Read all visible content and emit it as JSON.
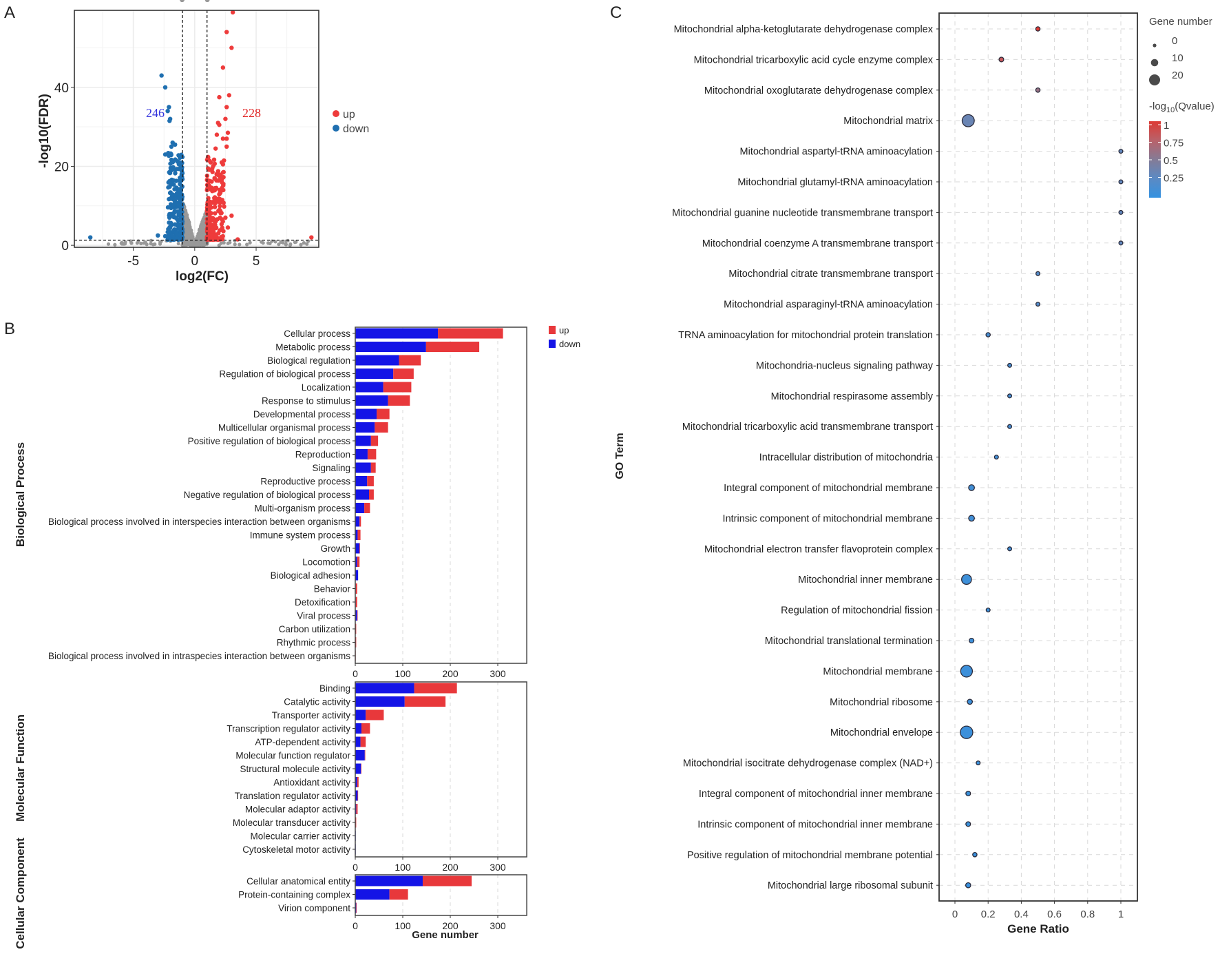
{
  "panels": {
    "a": "A",
    "b": "B",
    "c": "C"
  },
  "chart_data": [
    {
      "type": "scatter",
      "name": "volcano",
      "xlabel": "log2(FC)",
      "ylabel": "-log10(FDR)",
      "xlim": [
        -9.8,
        10.1
      ],
      "ylim": [
        -0.5,
        59.5
      ],
      "xticks": [
        -5,
        0,
        5
      ],
      "yticks": [
        0,
        20,
        40
      ],
      "grid": true,
      "thresholds": {
        "log2fc": [
          -1,
          1
        ],
        "neg_log10_fdr": 1.3
      },
      "annotations": {
        "down_count": "246",
        "up_count": "228"
      },
      "legend": {
        "position": "right",
        "entries": [
          {
            "label": "up",
            "color": "#ee3b3b"
          },
          {
            "label": "down",
            "color": "#1f6fb0"
          }
        ]
      },
      "colors": {
        "up": "#ee3b3b",
        "down": "#1f6fb0",
        "ns": "#999999"
      },
      "points_up": [
        [
          3.1,
          59
        ],
        [
          2.6,
          54
        ],
        [
          3.0,
          50
        ],
        [
          2.3,
          45
        ],
        [
          2.8,
          38
        ],
        [
          2.0,
          37.5
        ],
        [
          2.6,
          35
        ],
        [
          2.5,
          32
        ],
        [
          1.9,
          31
        ],
        [
          2.0,
          30.5
        ],
        [
          1.8,
          28
        ],
        [
          2.7,
          28.5
        ],
        [
          2.3,
          27
        ],
        [
          2.6,
          27
        ],
        [
          2.6,
          25
        ],
        [
          1.7,
          24.5
        ],
        [
          2.2,
          21
        ],
        [
          2.3,
          20.5
        ],
        [
          3.0,
          7.5
        ],
        [
          2.5,
          7
        ],
        [
          2.7,
          4.5
        ],
        [
          3.5,
          1.5
        ],
        [
          9.5,
          2
        ]
      ],
      "points_down": [
        [
          -2.7,
          43
        ],
        [
          -2.4,
          40
        ],
        [
          -2.1,
          35
        ],
        [
          -2.2,
          34
        ],
        [
          -2.0,
          32
        ],
        [
          -2.05,
          31.5
        ],
        [
          -1.8,
          26
        ],
        [
          -1.6,
          25.5
        ],
        [
          -1.9,
          25
        ],
        [
          -2.4,
          23
        ],
        [
          -3.0,
          2.5
        ],
        [
          -2.4,
          2.3
        ],
        [
          -2.0,
          4.5
        ],
        [
          -8.5,
          2
        ]
      ],
      "n_up": 228,
      "n_down": 246
    },
    {
      "type": "bar",
      "name": "go-classification",
      "stacked": true,
      "xlabel": "Gene number",
      "xlim": [
        0,
        361
      ],
      "xticks": [
        0,
        100,
        200,
        300
      ],
      "legend": {
        "position": "top-right",
        "entries": [
          {
            "label": "up",
            "color": "#e8383b"
          },
          {
            "label": "down",
            "color": "#1414e6"
          }
        ]
      },
      "colors": {
        "up": "#e8383b",
        "down": "#1414e6"
      },
      "groups": [
        {
          "label": "Biological Process",
          "categories": [
            {
              "name": "Cellular process",
              "down": 174,
              "up": 137
            },
            {
              "name": "Metabolic process",
              "down": 149,
              "up": 112
            },
            {
              "name": "Biological regulation",
              "down": 92,
              "up": 46
            },
            {
              "name": "Regulation of biological process",
              "down": 80,
              "up": 43
            },
            {
              "name": "Localization",
              "down": 59,
              "up": 59
            },
            {
              "name": "Response to stimulus",
              "down": 69,
              "up": 46
            },
            {
              "name": "Developmental process",
              "down": 45,
              "up": 27
            },
            {
              "name": "Multicellular organismal process",
              "down": 41,
              "up": 28
            },
            {
              "name": "Positive regulation of biological process",
              "down": 33,
              "up": 15
            },
            {
              "name": "Reproduction",
              "down": 26,
              "up": 18
            },
            {
              "name": "Signaling",
              "down": 33,
              "up": 10
            },
            {
              "name": "Reproductive process",
              "down": 25,
              "up": 14
            },
            {
              "name": "Negative regulation of biological process",
              "down": 29,
              "up": 10
            },
            {
              "name": "Multi-organism process",
              "down": 19,
              "up": 12
            },
            {
              "name": "Biological process involved in interspecies interaction between organisms",
              "down": 9,
              "up": 3
            },
            {
              "name": "Immune system process",
              "down": 5,
              "up": 6
            },
            {
              "name": "Growth",
              "down": 9,
              "up": 1
            },
            {
              "name": "Locomotion",
              "down": 4,
              "up": 5
            },
            {
              "name": "Biological adhesion",
              "down": 6,
              "up": 0
            },
            {
              "name": "Behavior",
              "down": 1,
              "up": 3
            },
            {
              "name": "Detoxification",
              "down": 1,
              "up": 3
            },
            {
              "name": "Viral process",
              "down": 4,
              "up": 1
            },
            {
              "name": "Carbon utilization",
              "down": 0,
              "up": 2
            },
            {
              "name": "Rhythmic process",
              "down": 0,
              "up": 2
            },
            {
              "name": "Biological process involved in intraspecies interaction between organisms",
              "down": 0,
              "up": 1
            }
          ]
        },
        {
          "label": "Molecular Function",
          "categories": [
            {
              "name": "Binding",
              "down": 124,
              "up": 90
            },
            {
              "name": "Catalytic activity",
              "down": 104,
              "up": 86
            },
            {
              "name": "Transporter activity",
              "down": 22,
              "up": 38
            },
            {
              "name": "Transcription regulator activity",
              "down": 13,
              "up": 18
            },
            {
              "name": "ATP-dependent activity",
              "down": 11,
              "up": 11
            },
            {
              "name": "Molecular function regulator",
              "down": 20,
              "up": 1
            },
            {
              "name": "Structural molecule activity",
              "down": 12,
              "up": 1
            },
            {
              "name": "Antioxidant activity",
              "down": 4,
              "up": 3
            },
            {
              "name": "Translation regulator activity",
              "down": 5,
              "up": 1
            },
            {
              "name": "Molecular adaptor activity",
              "down": 2,
              "up": 3
            },
            {
              "name": "Molecular transducer activity",
              "down": 0,
              "up": 2
            },
            {
              "name": "Molecular carrier activity",
              "down": 1,
              "up": 0
            },
            {
              "name": "Cytoskeletal motor activity",
              "down": 1,
              "up": 0
            }
          ]
        },
        {
          "label": "Cellular Component",
          "categories": [
            {
              "name": "Cellular anatomical entity",
              "down": 142,
              "up": 103
            },
            {
              "name": "Protein-containing complex",
              "down": 72,
              "up": 39
            },
            {
              "name": "Virion component",
              "down": 2,
              "up": 1
            }
          ]
        }
      ]
    },
    {
      "type": "scatter",
      "name": "go-bubble",
      "xlabel": "Gene Ratio",
      "ylabel": "GO Term",
      "xlim": [
        -0.1,
        1.1
      ],
      "xticks": [
        0,
        0.2,
        0.4,
        0.6,
        0.8,
        1
      ],
      "xtick_labels": [
        "0",
        "0.2",
        "0.4",
        "0.6",
        "0.8",
        "1"
      ],
      "grid": true,
      "size_legend": {
        "title": "Gene number",
        "values": [
          "0",
          "10",
          "20"
        ]
      },
      "color_legend": {
        "title_prefix": "-log",
        "title_sub": "10",
        "title_suffix": "(Qvalue)",
        "ticks": [
          "1",
          "0.75",
          "0.5",
          "0.25"
        ],
        "low_color": "#3592e0",
        "high_color": "#dd3a34"
      },
      "terms": [
        {
          "term": "Mitochondrial alpha-ketoglutarate dehydrogenase complex",
          "ratio": 0.5,
          "genes": 2,
          "q": 1.0
        },
        {
          "term": "Mitochondrial tricarboxylic acid cycle enzyme complex",
          "ratio": 0.28,
          "genes": 3,
          "q": 0.82
        },
        {
          "term": "Mitochondrial oxoglutarate dehydrogenase complex",
          "ratio": 0.5,
          "genes": 2,
          "q": 0.6
        },
        {
          "term": "Mitochondrial matrix",
          "ratio": 0.08,
          "genes": 23,
          "q": 0.35
        },
        {
          "term": "Mitochondrial aspartyl-tRNA aminoacylation",
          "ratio": 1.0,
          "genes": 1,
          "q": 0.3
        },
        {
          "term": "Mitochondrial glutamyl-tRNA aminoacylation",
          "ratio": 1.0,
          "genes": 1,
          "q": 0.3
        },
        {
          "term": "Mitochondrial guanine nucleotide transmembrane transport",
          "ratio": 1.0,
          "genes": 1,
          "q": 0.3
        },
        {
          "term": "Mitochondrial coenzyme A transmembrane transport",
          "ratio": 1.0,
          "genes": 1,
          "q": 0.3
        },
        {
          "term": "Mitochondrial citrate transmembrane transport",
          "ratio": 0.5,
          "genes": 1,
          "q": 0.2
        },
        {
          "term": "Mitochondrial asparaginyl-tRNA aminoacylation",
          "ratio": 0.5,
          "genes": 1,
          "q": 0.2
        },
        {
          "term": "TRNA aminoacylation for mitochondrial protein translation",
          "ratio": 0.2,
          "genes": 2,
          "q": 0.12
        },
        {
          "term": "Mitochondria-nucleus signaling pathway",
          "ratio": 0.33,
          "genes": 1,
          "q": 0.12
        },
        {
          "term": "Mitochondrial respirasome assembly",
          "ratio": 0.33,
          "genes": 1,
          "q": 0.12
        },
        {
          "term": "Mitochondrial tricarboxylic acid transmembrane transport",
          "ratio": 0.33,
          "genes": 1,
          "q": 0.12
        },
        {
          "term": "Intracellular distribution of mitochondria",
          "ratio": 0.25,
          "genes": 1,
          "q": 0.1
        },
        {
          "term": "Integral component of mitochondrial membrane",
          "ratio": 0.1,
          "genes": 6,
          "q": 0.08
        },
        {
          "term": "Intrinsic component of mitochondrial membrane",
          "ratio": 0.1,
          "genes": 6,
          "q": 0.08
        },
        {
          "term": "Mitochondrial electron transfer flavoprotein complex",
          "ratio": 0.33,
          "genes": 1,
          "q": 0.08
        },
        {
          "term": "Mitochondrial inner membrane",
          "ratio": 0.07,
          "genes": 17,
          "q": 0.06
        },
        {
          "term": "Regulation of mitochondrial fission",
          "ratio": 0.2,
          "genes": 1,
          "q": 0.06
        },
        {
          "term": "Mitochondrial translational termination",
          "ratio": 0.1,
          "genes": 3,
          "q": 0.05
        },
        {
          "term": "Mitochondrial membrane",
          "ratio": 0.07,
          "genes": 22,
          "q": 0.05
        },
        {
          "term": "Mitochondrial ribosome",
          "ratio": 0.09,
          "genes": 4,
          "q": 0.05
        },
        {
          "term": "Mitochondrial envelope",
          "ratio": 0.07,
          "genes": 24,
          "q": 0.05
        },
        {
          "term": "Mitochondrial isocitrate dehydrogenase complex (NAD+)",
          "ratio": 0.14,
          "genes": 1,
          "q": 0.04
        },
        {
          "term": "Integral component of mitochondrial inner membrane",
          "ratio": 0.08,
          "genes": 3,
          "q": 0.04
        },
        {
          "term": "Intrinsic component of mitochondrial inner membrane",
          "ratio": 0.08,
          "genes": 3,
          "q": 0.04
        },
        {
          "term": "Positive regulation of mitochondrial membrane potential",
          "ratio": 0.12,
          "genes": 2,
          "q": 0.03
        },
        {
          "term": "Mitochondrial large ribosomal subunit",
          "ratio": 0.08,
          "genes": 4,
          "q": 0.03
        }
      ]
    }
  ]
}
